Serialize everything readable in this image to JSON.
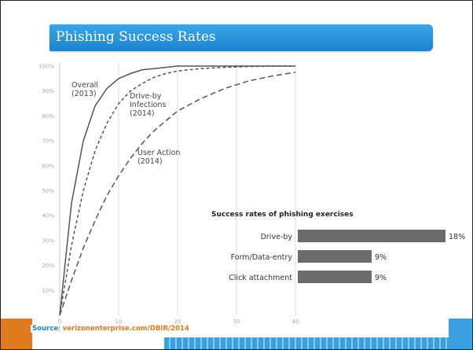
{
  "title": "Phishing Success Rates",
  "colors": {
    "title_bg": "#1d83cf",
    "bars": "#6b6b6b",
    "curves": "#555555",
    "grid": "#dddddd",
    "orange": "#e07a1f"
  },
  "source": {
    "label": "Source",
    "separator": ": ",
    "link": "verizonenterprise.com/DBIR/2014"
  },
  "chart_data": [
    {
      "type": "line",
      "title": "",
      "xlabel": "",
      "ylabel": "",
      "xlim": [
        0,
        40
      ],
      "ylim": [
        0,
        100
      ],
      "x_ticks": [
        0,
        10,
        20,
        30,
        40
      ],
      "y_ticks": [
        10,
        20,
        30,
        40,
        50,
        60,
        70,
        80,
        90,
        100
      ],
      "y_tick_suffix": "%",
      "grid": "vertical",
      "legend": "none",
      "series": [
        {
          "name": "Overall (2013)",
          "name_lines": [
            "Overall",
            "(2013)"
          ],
          "style": "solid",
          "x": [
            0,
            2,
            4,
            6,
            8,
            10,
            12,
            14,
            16,
            18,
            20,
            24,
            28,
            32,
            36,
            40
          ],
          "y": [
            0,
            45,
            70,
            84,
            91,
            95,
            97,
            98.5,
            99,
            99.5,
            100,
            100,
            100,
            100,
            100,
            100
          ]
        },
        {
          "name": "Drive-by Infections (2014)",
          "name_lines": [
            "Drive-by",
            "Infections",
            "(2014)"
          ],
          "style": "dashed",
          "x": [
            0,
            2,
            4,
            6,
            8,
            10,
            12,
            14,
            16,
            18,
            20,
            24,
            28,
            32,
            36,
            40
          ],
          "y": [
            0,
            28,
            50,
            66,
            77,
            85,
            90,
            93,
            95.5,
            97,
            98,
            99,
            99.5,
            99.8,
            100,
            100
          ]
        },
        {
          "name": "User Action (2014)",
          "name_lines": [
            "User Action",
            "(2014)"
          ],
          "style": "dashed",
          "x": [
            0,
            2,
            4,
            6,
            8,
            10,
            12,
            14,
            16,
            18,
            20,
            24,
            28,
            32,
            36,
            40
          ],
          "y": [
            0,
            14,
            27,
            38,
            48,
            56,
            63,
            69,
            74,
            78,
            82,
            87,
            91,
            94,
            96,
            97.5
          ]
        }
      ]
    },
    {
      "type": "bar",
      "orientation": "horizontal",
      "title": "Success rates of phishing exercises",
      "categories": [
        "Drive-by",
        "Form/Data-entry",
        "Click attachment"
      ],
      "values": [
        18,
        9,
        9
      ],
      "value_labels": [
        "18%",
        "9%",
        "9%"
      ],
      "xlim": [
        0,
        18
      ]
    }
  ]
}
